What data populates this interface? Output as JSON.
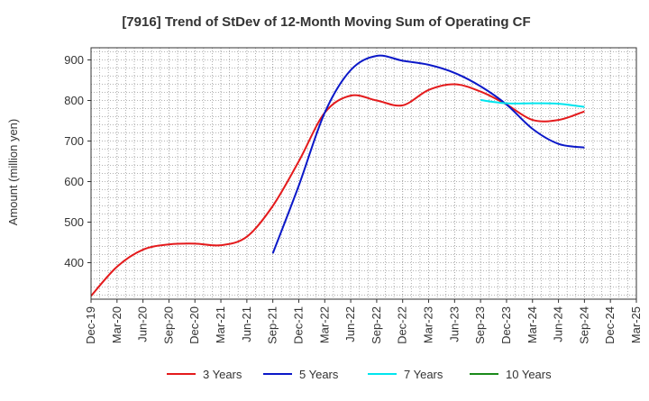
{
  "chart_data": {
    "type": "line",
    "title": "[7916]  Trend of StDev of 12-Month Moving Sum of Operating CF",
    "ylabel": "Amount (million yen)",
    "xlabel": "",
    "ylim": [
      310,
      930
    ],
    "yticks": [
      400,
      500,
      600,
      700,
      800,
      900
    ],
    "categories": [
      "Dec-19",
      "Mar-20",
      "Jun-20",
      "Sep-20",
      "Dec-20",
      "Mar-21",
      "Jun-21",
      "Sep-21",
      "Dec-21",
      "Mar-22",
      "Jun-22",
      "Sep-22",
      "Dec-22",
      "Mar-23",
      "Jun-23",
      "Sep-23",
      "Dec-23",
      "Mar-24",
      "Jun-24",
      "Sep-24",
      "Dec-24",
      "Mar-25"
    ],
    "grid": true,
    "legend_position": "bottom",
    "series": [
      {
        "name": "3 Years",
        "color": "#e41a1c",
        "values": [
          318,
          390,
          432,
          445,
          447,
          443,
          464,
          540,
          650,
          770,
          812,
          800,
          788,
          826,
          840,
          822,
          790,
          752,
          752,
          773,
          null,
          null
        ]
      },
      {
        "name": "5 Years",
        "color": "#0b18c8",
        "values": [
          null,
          null,
          null,
          null,
          null,
          null,
          null,
          423,
          590,
          770,
          875,
          910,
          898,
          888,
          868,
          835,
          790,
          730,
          693,
          684,
          null,
          null
        ]
      },
      {
        "name": "7 Years",
        "color": "#00e5ee",
        "values": [
          null,
          null,
          null,
          null,
          null,
          null,
          null,
          null,
          null,
          null,
          null,
          null,
          null,
          null,
          null,
          801,
          793,
          793,
          792,
          784,
          null,
          null
        ]
      },
      {
        "name": "10 Years",
        "color": "#1a8a1a",
        "values": [
          null,
          null,
          null,
          null,
          null,
          null,
          null,
          null,
          null,
          null,
          null,
          null,
          null,
          null,
          null,
          null,
          null,
          null,
          null,
          null,
          null,
          null
        ]
      }
    ]
  }
}
